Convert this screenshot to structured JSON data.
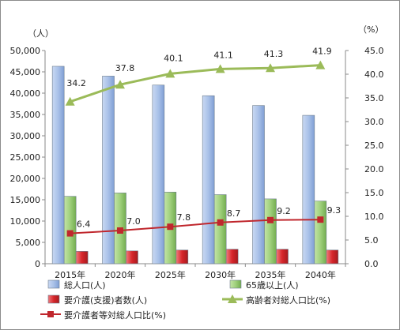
{
  "chart_data": {
    "type": "bar",
    "categories": [
      "2015年",
      "2020年",
      "2025年",
      "2030年",
      "2035年",
      "2040年"
    ],
    "y_left_unit": "（人）",
    "y_right_unit": "（%）",
    "y_left_ticks": [
      "0",
      "5,000",
      "10,000",
      "15,000",
      "20,000",
      "25,000",
      "30,000",
      "35,000",
      "40,000",
      "45,000",
      "50,000"
    ],
    "y_right_ticks": [
      "0.0",
      "5.0",
      "10.0",
      "15.0",
      "20.0",
      "25.0",
      "30.0",
      "35.0",
      "40.0",
      "45.0"
    ],
    "ylim_left": [
      0,
      50000
    ],
    "ylim_right": [
      0,
      45
    ],
    "grid": false,
    "legend_position": "bottom",
    "series": [
      {
        "name": "総人口(人)",
        "type": "bar",
        "axis": "left",
        "color": "#a9c1e8",
        "values": [
          46300,
          44000,
          41900,
          39400,
          37100,
          34800
        ]
      },
      {
        "name": "65歳以上(人)",
        "type": "bar",
        "axis": "left",
        "color": "#9fd07c",
        "values": [
          15800,
          16600,
          16800,
          16200,
          15200,
          14700
        ]
      },
      {
        "name": "要介護(支援)者数(人)",
        "type": "bar",
        "axis": "left",
        "color": "#d7262b",
        "values": [
          2900,
          3000,
          3200,
          3400,
          3400,
          3200
        ]
      },
      {
        "name": "高齢者対総人口比(%)",
        "type": "line",
        "axis": "right",
        "color": "#9bbb59",
        "values": [
          34.2,
          37.8,
          40.1,
          41.1,
          41.3,
          41.9
        ],
        "labels": [
          "34.2",
          "37.8",
          "40.1",
          "41.1",
          "41.3",
          "41.9"
        ]
      },
      {
        "name": "要介護者等対総人口比(%)",
        "type": "line",
        "axis": "right",
        "color": "#c0272d",
        "values": [
          6.4,
          7.0,
          7.8,
          8.7,
          9.2,
          9.3
        ],
        "labels": [
          "6.4",
          "7.0",
          "7.8",
          "8.7",
          "9.2",
          "9.3"
        ]
      }
    ]
  }
}
